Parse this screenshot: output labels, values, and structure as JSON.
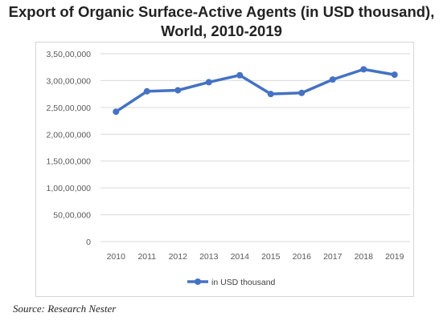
{
  "title_line1": "Export of Organic Surface-Active Agents (in USD thousand),",
  "title_line2": "World, 2010-2019",
  "source": "Source: Research Nester",
  "colors": {
    "series": "#4472C4",
    "grid": "#d9d9d9",
    "axis_text": "#595959"
  },
  "chart_data": {
    "type": "line",
    "title": "Export of Organic Surface-Active Agents (in USD thousand), World, 2010-2019",
    "xlabel": "",
    "ylabel": "",
    "ylim": [
      0,
      35000000
    ],
    "yticks": [
      0,
      5000000,
      10000000,
      15000000,
      20000000,
      25000000,
      30000000,
      35000000
    ],
    "ytick_labels": [
      "0",
      "50,00,000",
      "1,00,00,000",
      "1,50,00,000",
      "2,00,00,000",
      "2,50,00,000",
      "3,00,00,000",
      "3,50,00,000"
    ],
    "grid": true,
    "legend_position": "bottom",
    "categories": [
      "2010",
      "2011",
      "2012",
      "2013",
      "2014",
      "2015",
      "2016",
      "2017",
      "2018",
      "2019"
    ],
    "series": [
      {
        "name": "in USD thousand",
        "values": [
          24200000,
          28000000,
          28200000,
          29700000,
          31000000,
          27500000,
          27700000,
          30200000,
          32100000,
          31100000
        ]
      }
    ]
  }
}
